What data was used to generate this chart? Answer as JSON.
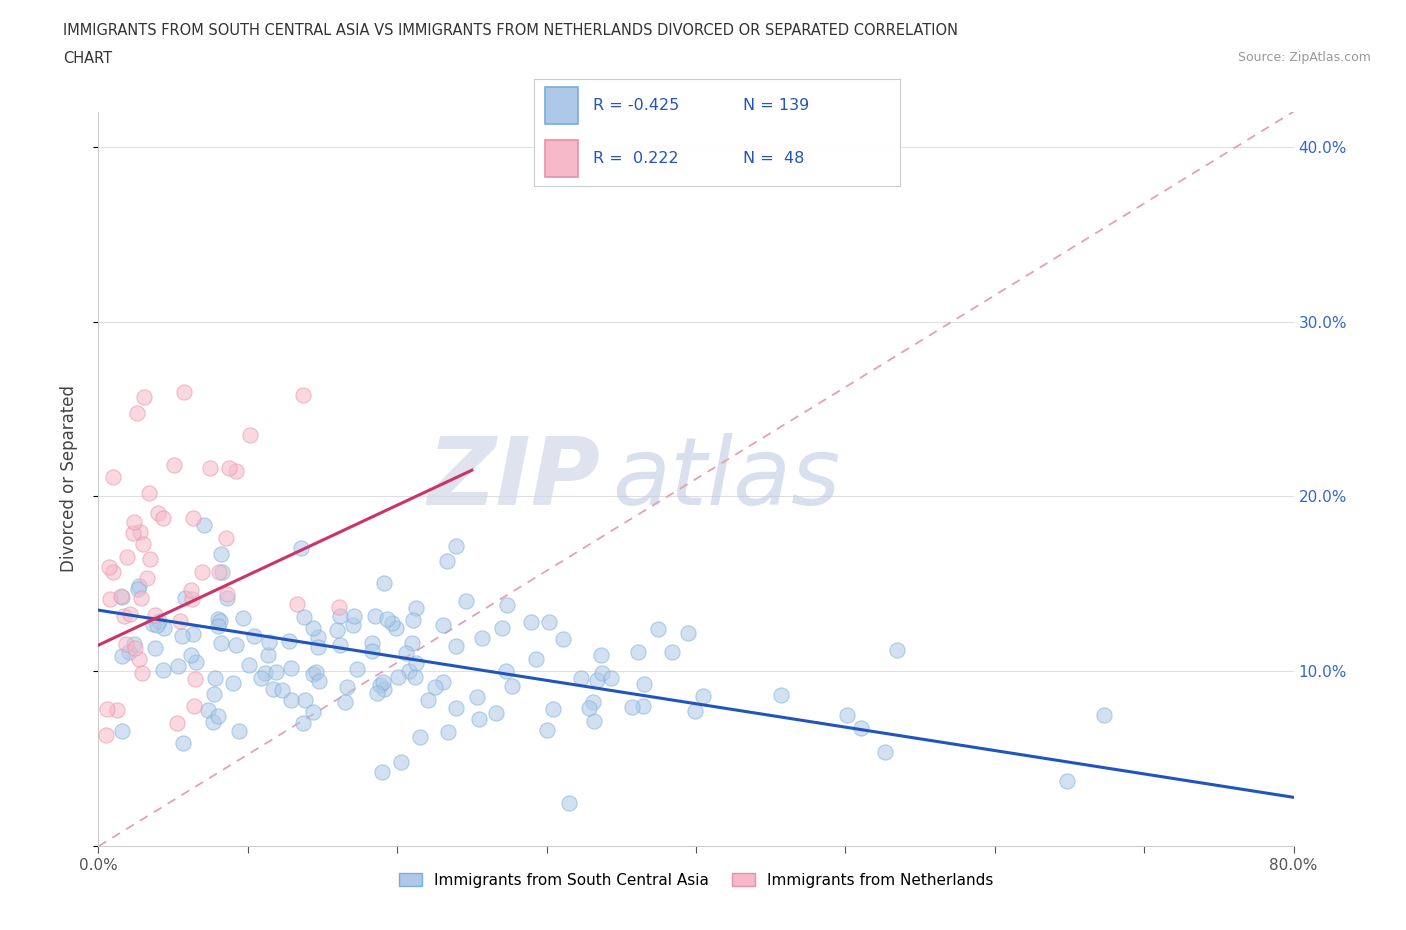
{
  "title_line1": "IMMIGRANTS FROM SOUTH CENTRAL ASIA VS IMMIGRANTS FROM NETHERLANDS DIVORCED OR SEPARATED CORRELATION",
  "title_line2": "CHART",
  "source": "Source: ZipAtlas.com",
  "ylabel": "Divorced or Separated",
  "xlim": [
    0.0,
    0.8
  ],
  "ylim": [
    0.0,
    0.42
  ],
  "xtick_vals": [
    0.0,
    0.1,
    0.2,
    0.3,
    0.4,
    0.5,
    0.6,
    0.7,
    0.8
  ],
  "xticklabels": [
    "0.0%",
    "",
    "",
    "",
    "",
    "",
    "",
    "",
    "80.0%"
  ],
  "ytick_vals": [
    0.0,
    0.1,
    0.2,
    0.3,
    0.4
  ],
  "ytick_labels_right": [
    "",
    "10.0%",
    "20.0%",
    "30.0%",
    "40.0%"
  ],
  "blue_fill_color": "#adc8e8",
  "blue_edge_color": "#7aafd4",
  "pink_fill_color": "#f5b8c8",
  "pink_edge_color": "#e890a8",
  "blue_line_color": "#2255bb",
  "pink_line_color": "#cc3366",
  "dashed_line_color": "#e8a0b0",
  "grid_color": "#e0e0e0",
  "R_blue": -0.425,
  "N_blue": 139,
  "R_pink": 0.222,
  "N_pink": 48,
  "legend_label_blue": "Immigrants from South Central Asia",
  "legend_label_pink": "Immigrants from Netherlands",
  "watermark": "ZIPatlas",
  "blue_line_x0": 0.0,
  "blue_line_y0": 0.135,
  "blue_line_x1": 0.8,
  "blue_line_y1": 0.028,
  "pink_line_x0": 0.0,
  "pink_line_y0": 0.115,
  "pink_line_x1": 0.25,
  "pink_line_y1": 0.215,
  "dashed_line_x0": 0.0,
  "dashed_line_y0": 0.0,
  "dashed_line_x1": 0.8,
  "dashed_line_y1": 0.42,
  "dot_size": 120,
  "dot_alpha": 0.55
}
